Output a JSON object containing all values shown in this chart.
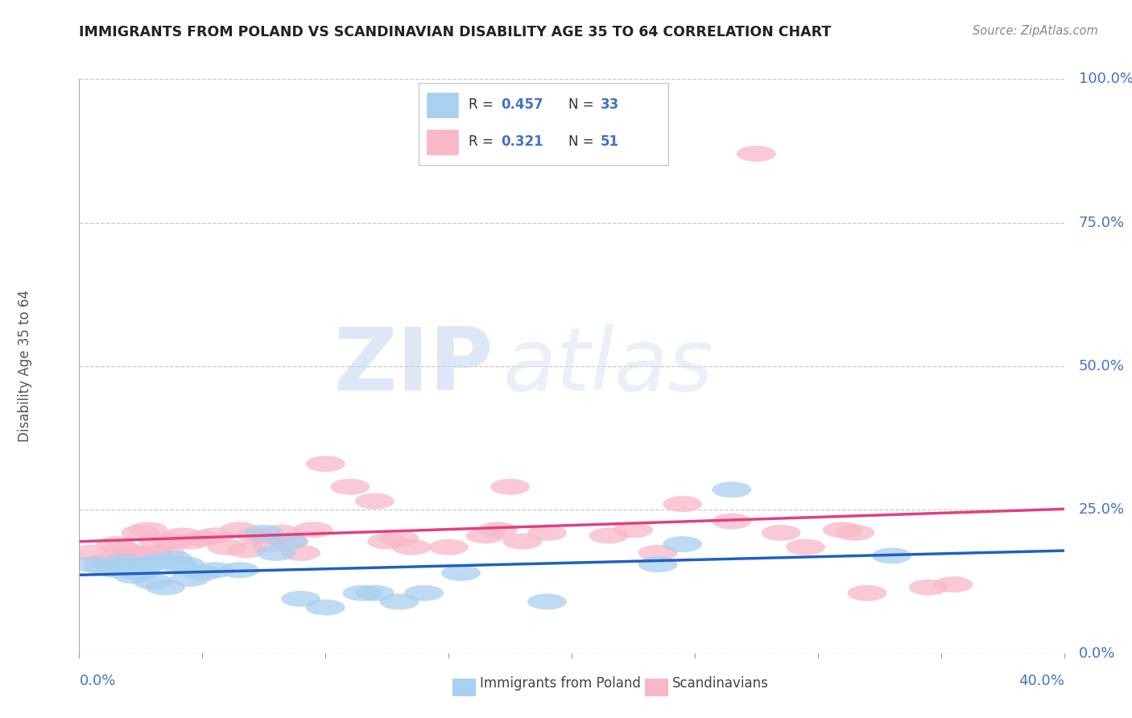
{
  "title": "IMMIGRANTS FROM POLAND VS SCANDINAVIAN DISABILITY AGE 35 TO 64 CORRELATION CHART",
  "source": "Source: ZipAtlas.com",
  "ylabel": "Disability Age 35 to 64",
  "ylabel_right_ticks": [
    "100.0%",
    "75.0%",
    "50.0%",
    "25.0%",
    "0.0%"
  ],
  "ylabel_right_vals": [
    1.0,
    0.75,
    0.5,
    0.25,
    0.0
  ],
  "legend_blue_r": "0.457",
  "legend_blue_n": "33",
  "legend_pink_r": "0.321",
  "legend_pink_n": "51",
  "legend_blue_label": "Immigrants from Poland",
  "legend_pink_label": "Scandinavians",
  "blue_color": "#a8d0f0",
  "pink_color": "#f8b8c8",
  "blue_line_color": "#2060c0",
  "pink_line_color": "#e04080",
  "blue_scatter": [
    [
      0.005,
      0.155
    ],
    [
      0.01,
      0.15
    ],
    [
      0.015,
      0.145
    ],
    [
      0.018,
      0.16
    ],
    [
      0.02,
      0.15
    ],
    [
      0.022,
      0.135
    ],
    [
      0.025,
      0.14
    ],
    [
      0.028,
      0.155
    ],
    [
      0.03,
      0.125
    ],
    [
      0.032,
      0.16
    ],
    [
      0.035,
      0.115
    ],
    [
      0.038,
      0.165
    ],
    [
      0.04,
      0.155
    ],
    [
      0.043,
      0.155
    ],
    [
      0.045,
      0.13
    ],
    [
      0.05,
      0.14
    ],
    [
      0.055,
      0.145
    ],
    [
      0.065,
      0.145
    ],
    [
      0.075,
      0.21
    ],
    [
      0.08,
      0.175
    ],
    [
      0.085,
      0.195
    ],
    [
      0.09,
      0.095
    ],
    [
      0.1,
      0.08
    ],
    [
      0.115,
      0.105
    ],
    [
      0.12,
      0.105
    ],
    [
      0.13,
      0.09
    ],
    [
      0.14,
      0.105
    ],
    [
      0.155,
      0.14
    ],
    [
      0.19,
      0.09
    ],
    [
      0.235,
      0.155
    ],
    [
      0.245,
      0.19
    ],
    [
      0.265,
      0.285
    ],
    [
      0.33,
      0.17
    ]
  ],
  "pink_scatter": [
    [
      0.005,
      0.175
    ],
    [
      0.01,
      0.16
    ],
    [
      0.015,
      0.19
    ],
    [
      0.018,
      0.18
    ],
    [
      0.02,
      0.17
    ],
    [
      0.022,
      0.175
    ],
    [
      0.025,
      0.21
    ],
    [
      0.028,
      0.215
    ],
    [
      0.03,
      0.175
    ],
    [
      0.032,
      0.195
    ],
    [
      0.035,
      0.175
    ],
    [
      0.038,
      0.195
    ],
    [
      0.042,
      0.205
    ],
    [
      0.045,
      0.195
    ],
    [
      0.05,
      0.2
    ],
    [
      0.055,
      0.205
    ],
    [
      0.06,
      0.185
    ],
    [
      0.065,
      0.215
    ],
    [
      0.068,
      0.18
    ],
    [
      0.072,
      0.205
    ],
    [
      0.075,
      0.205
    ],
    [
      0.078,
      0.19
    ],
    [
      0.082,
      0.21
    ],
    [
      0.085,
      0.195
    ],
    [
      0.09,
      0.175
    ],
    [
      0.095,
      0.215
    ],
    [
      0.1,
      0.33
    ],
    [
      0.11,
      0.29
    ],
    [
      0.12,
      0.265
    ],
    [
      0.125,
      0.195
    ],
    [
      0.13,
      0.2
    ],
    [
      0.135,
      0.185
    ],
    [
      0.15,
      0.185
    ],
    [
      0.165,
      0.205
    ],
    [
      0.17,
      0.215
    ],
    [
      0.175,
      0.29
    ],
    [
      0.18,
      0.195
    ],
    [
      0.19,
      0.21
    ],
    [
      0.215,
      0.205
    ],
    [
      0.225,
      0.215
    ],
    [
      0.235,
      0.175
    ],
    [
      0.245,
      0.26
    ],
    [
      0.265,
      0.23
    ],
    [
      0.275,
      0.87
    ],
    [
      0.285,
      0.21
    ],
    [
      0.295,
      0.185
    ],
    [
      0.31,
      0.215
    ],
    [
      0.315,
      0.21
    ],
    [
      0.32,
      0.105
    ],
    [
      0.345,
      0.115
    ],
    [
      0.355,
      0.12
    ]
  ],
  "xlim": [
    0.0,
    0.4
  ],
  "ylim": [
    0.0,
    1.0
  ],
  "watermark_zip": "ZIP",
  "watermark_atlas": "atlas",
  "background_color": "#ffffff",
  "grid_color": "#c8c8c8"
}
